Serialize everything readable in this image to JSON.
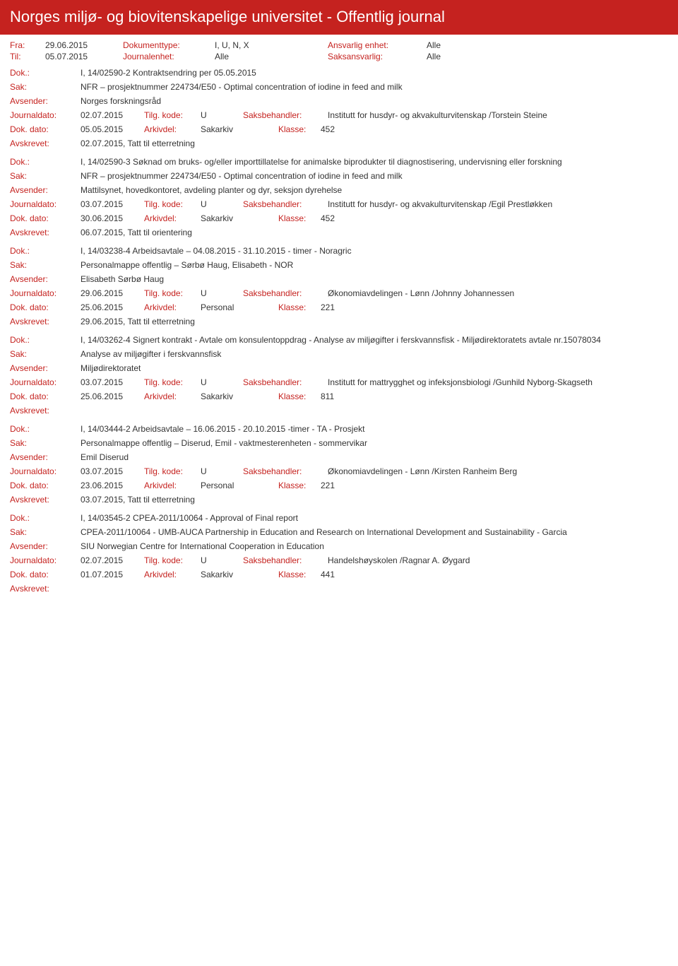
{
  "header_title": "Norges miljø- og biovitenskapelige universitet - Offentlig journal",
  "filters": {
    "fra_label": "Fra:",
    "fra": "29.06.2015",
    "til_label": "Til:",
    "til": "05.07.2015",
    "doktype_label": "Dokumenttype:",
    "doktype": "I, U, N, X",
    "journ_label": "Journalenhet:",
    "journ": "Alle",
    "ansv_label": "Ansvarlig enhet:",
    "ansv": "Alle",
    "saks_label": "Saksansvarlig:",
    "saks": "Alle"
  },
  "labels": {
    "dok": "Dok.:",
    "sak": "Sak:",
    "avs": "Avsender:",
    "jdato": "Journaldato:",
    "tkode": "Tilg. kode:",
    "sbeh": "Saksbehandler:",
    "ddato": "Dok. dato:",
    "arkd": "Arkivdel:",
    "klasse": "Klasse:",
    "avskr": "Avskrevet:"
  },
  "entries": [
    {
      "dok": "I, 14/02590-2 Kontraktsendring per 05.05.2015",
      "sak": "NFR – prosjektnummer 224734/E50 - Optimal concentration of iodine in feed and milk",
      "avs": "Norges forskningsråd",
      "jdato": "02.07.2015",
      "tkode": "U",
      "sbeh": "Institutt for husdyr- og akvakulturvitenskap /Torstein Steine",
      "ddato": "05.05.2015",
      "arkd": "Sakarkiv",
      "klasse": "452",
      "avskr": "02.07.2015, Tatt til etterretning"
    },
    {
      "dok": "I, 14/02590-3 Søknad om bruks- og/eller importtillatelse for animalske biprodukter til diagnostisering, undervisning eller forskning",
      "sak": "NFR – prosjektnummer 224734/E50 - Optimal concentration of iodine in feed and milk",
      "avs": "Mattilsynet, hovedkontoret, avdeling planter og dyr, seksjon dyrehelse",
      "jdato": "03.07.2015",
      "tkode": "U",
      "sbeh": "Institutt for husdyr- og akvakulturvitenskap /Egil Prestløkken",
      "ddato": "30.06.2015",
      "arkd": "Sakarkiv",
      "klasse": "452",
      "avskr": "06.07.2015, Tatt til orientering"
    },
    {
      "dok": "I, 14/03238-4 Arbeidsavtale – 04.08.2015 - 31.10.2015 - timer - Noragric",
      "sak": "Personalmappe offentlig – Sørbø Haug, Elisabeth - NOR",
      "avs": "Elisabeth Sørbø Haug",
      "jdato": "29.06.2015",
      "tkode": "U",
      "sbeh": "Økonomiavdelingen - Lønn /Johnny Johannessen",
      "ddato": "25.06.2015",
      "arkd": "Personal",
      "klasse": "221",
      "avskr": "29.06.2015, Tatt til etterretning"
    },
    {
      "dok": "I, 14/03262-4 Signert kontrakt - Avtale om konsulentoppdrag - Analyse av miljøgifter i ferskvannsfisk - Miljødirektoratets avtale nr.15078034",
      "sak": "Analyse av miljøgifter i ferskvannsfisk",
      "avs": "Miljødirektoratet",
      "jdato": "03.07.2015",
      "tkode": "U",
      "sbeh": "Institutt for mattrygghet og infeksjonsbiologi /Gunhild Nyborg-Skagseth",
      "ddato": "25.06.2015",
      "arkd": "Sakarkiv",
      "klasse": "811",
      "avskr": ""
    },
    {
      "dok": "I, 14/03444-2 Arbeidsavtale – 16.06.2015 - 20.10.2015 -timer - TA - Prosjekt",
      "sak": "Personalmappe offentlig – Diserud, Emil -  vaktmesterenheten - sommervikar",
      "avs": "Emil Diserud",
      "jdato": "03.07.2015",
      "tkode": "U",
      "sbeh": "Økonomiavdelingen - Lønn /Kirsten Ranheim Berg",
      "ddato": "23.06.2015",
      "arkd": "Personal",
      "klasse": "221",
      "avskr": "03.07.2015, Tatt til etterretning"
    },
    {
      "dok": "I, 14/03545-2 CPEA-2011/10064 - Approval of Final report",
      "sak": "CPEA-2011/10064 - UMB-AUCA Partnership in Education and Research on International Development and Sustainability - Garcia",
      "avs": "SIU Norwegian Centre for International Cooperation in Education",
      "jdato": "02.07.2015",
      "tkode": "U",
      "sbeh": "Handelshøyskolen /Ragnar A. Øygard",
      "ddato": "01.07.2015",
      "arkd": "Sakarkiv",
      "klasse": "441",
      "avskr": ""
    }
  ]
}
